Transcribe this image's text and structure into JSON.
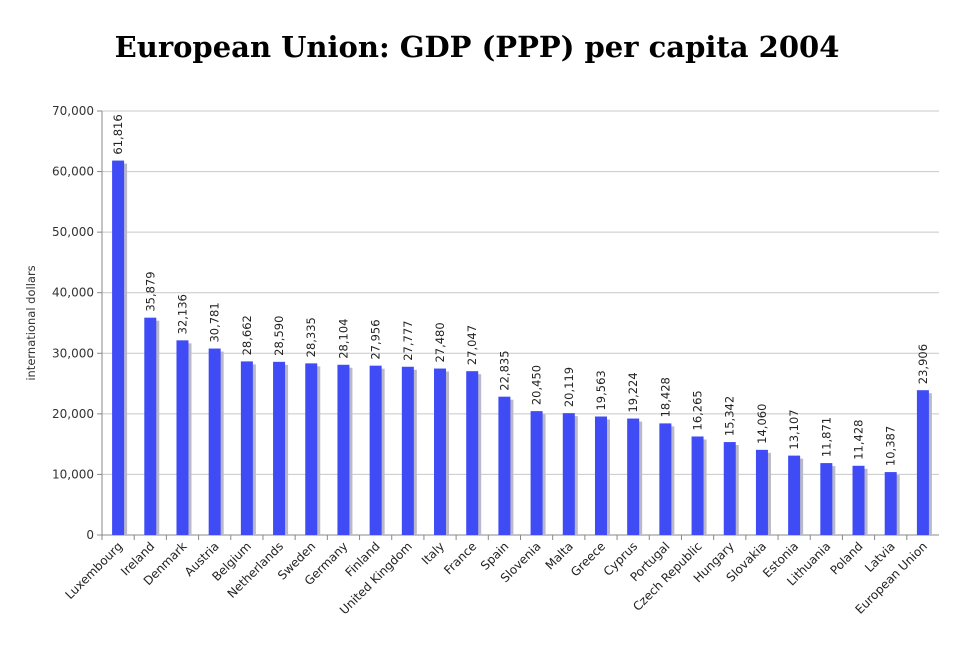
{
  "chart_data": {
    "type": "bar",
    "title": "European Union: GDP (PPP) per capita 2004",
    "xlabel": "",
    "ylabel": "international dollars",
    "ylim": [
      0,
      70000
    ],
    "yticks": [
      0,
      10000,
      20000,
      30000,
      40000,
      50000,
      60000,
      70000
    ],
    "ytick_labels": [
      "0",
      "10,000",
      "20,000",
      "30,000",
      "40,000",
      "50,000",
      "60,000",
      "70,000"
    ],
    "grid": true,
    "legend": "none",
    "bar_color": "#3f4cf5",
    "shadow_color": "#b9b9c9",
    "categories": [
      "Luxembourg",
      "Ireland",
      "Denmark",
      "Austria",
      "Belgium",
      "Netherlands",
      "Sweden",
      "Germany",
      "Finland",
      "United Kingdom",
      "Italy",
      "France",
      "Spain",
      "Slovenia",
      "Malta",
      "Greece",
      "Cyprus",
      "Portugal",
      "Czech Republic",
      "Hungary",
      "Slovakia",
      "Estonia",
      "Lithuania",
      "Poland",
      "Latvia",
      "European Union"
    ],
    "values": [
      61816,
      35879,
      32136,
      30781,
      28662,
      28590,
      28335,
      28104,
      27956,
      27777,
      27480,
      27047,
      22835,
      20450,
      20119,
      19563,
      19224,
      18428,
      16265,
      15342,
      14060,
      13107,
      11871,
      11428,
      10387,
      23906
    ],
    "value_labels": [
      "61,816",
      "35,879",
      "32,136",
      "30,781",
      "28,662",
      "28,590",
      "28,335",
      "28,104",
      "27,956",
      "27,777",
      "27,480",
      "27,047",
      "22,835",
      "20,450",
      "20,119",
      "19,563",
      "19,224",
      "18,428",
      "16,265",
      "15,342",
      "14,060",
      "13,107",
      "11,871",
      "11,428",
      "10,387",
      "23,906"
    ]
  }
}
